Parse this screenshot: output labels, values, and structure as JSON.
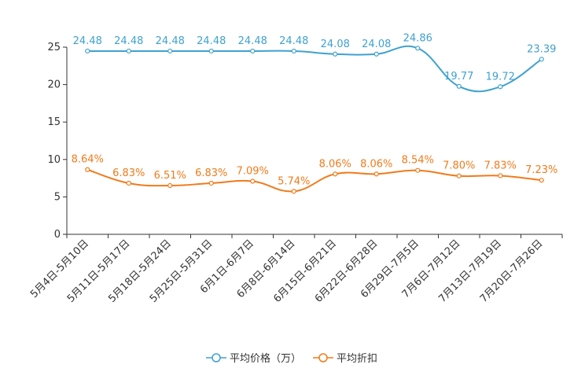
{
  "chart_data": {
    "type": "line",
    "title": "",
    "xlabel": "",
    "ylabel": "",
    "ylim": [
      0,
      25
    ],
    "yticks": [
      0,
      5,
      10,
      15,
      20,
      25
    ],
    "grid": false,
    "legend_position": "bottom-center",
    "categories": [
      "5月4日-5月10日",
      "5月11日-5月17日",
      "5月18日-5月24日",
      "5月25日-5月31日",
      "6月1日-6月7日",
      "6月8日-6月14日",
      "6月15日-6月21日",
      "6月22日-6月28日",
      "6月29日-7月5日",
      "7月6日-7月12日",
      "7月13日-7月19日",
      "7月20日-7月26日"
    ],
    "series": [
      {
        "name": "平均价格（万）",
        "color": "#3fa1d0",
        "values": [
          24.48,
          24.48,
          24.48,
          24.48,
          24.48,
          24.48,
          24.08,
          24.08,
          24.86,
          19.77,
          19.72,
          23.39
        ],
        "labels": [
          "24.48",
          "24.48",
          "24.48",
          "24.48",
          "24.48",
          "24.48",
          "24.08",
          "24.08",
          "24.86",
          "19.77",
          "19.72",
          "23.39"
        ]
      },
      {
        "name": "平均折扣",
        "color": "#f07b1b",
        "values": [
          8.64,
          6.83,
          6.51,
          6.83,
          7.09,
          5.74,
          8.06,
          8.06,
          8.54,
          7.8,
          7.83,
          7.23
        ],
        "labels": [
          "8.64%",
          "6.83%",
          "6.51%",
          "6.83%",
          "7.09%",
          "5.74%",
          "8.06%",
          "8.06%",
          "8.54%",
          "7.80%",
          "7.83%",
          "7.23%"
        ]
      }
    ]
  }
}
